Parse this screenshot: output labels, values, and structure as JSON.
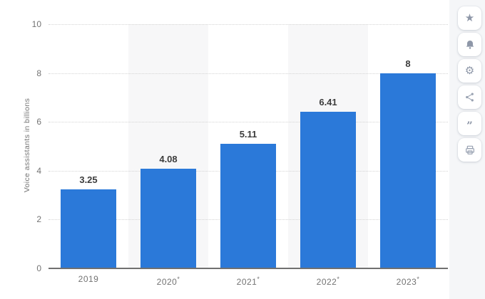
{
  "chart_data": {
    "type": "bar",
    "categories": [
      "2019",
      "2020*",
      "2021*",
      "2022*",
      "2023*"
    ],
    "values": [
      3.25,
      4.08,
      5.11,
      6.41,
      8
    ],
    "value_labels": [
      "3.25",
      "4.08",
      "5.11",
      "6.41",
      "8"
    ],
    "title": "",
    "xlabel": "",
    "ylabel": "Voice assistants in billions",
    "ylim": [
      0,
      10
    ],
    "yticks": [
      0,
      2,
      4,
      6,
      8,
      10
    ],
    "grid": true,
    "legend": "none",
    "band_columns": [
      1,
      3
    ],
    "colors": {
      "bar": "#2b79d9",
      "band": "#f7f7f8",
      "gridline": "#d4d4d4",
      "axis_line": "#707070",
      "tick_text": "#737373",
      "value_text": "#3c3c3c"
    }
  },
  "toolbar": {
    "buttons": [
      {
        "name": "favorite",
        "icon": "star-icon"
      },
      {
        "name": "alerts",
        "icon": "bell-icon"
      },
      {
        "name": "settings",
        "icon": "gear-icon"
      },
      {
        "name": "share",
        "icon": "share-icon"
      },
      {
        "name": "cite",
        "icon": "quote-icon"
      },
      {
        "name": "print",
        "icon": "printer-icon"
      }
    ],
    "icon_color": "#8e97a8",
    "rail_bg": "#f5f6f8"
  }
}
